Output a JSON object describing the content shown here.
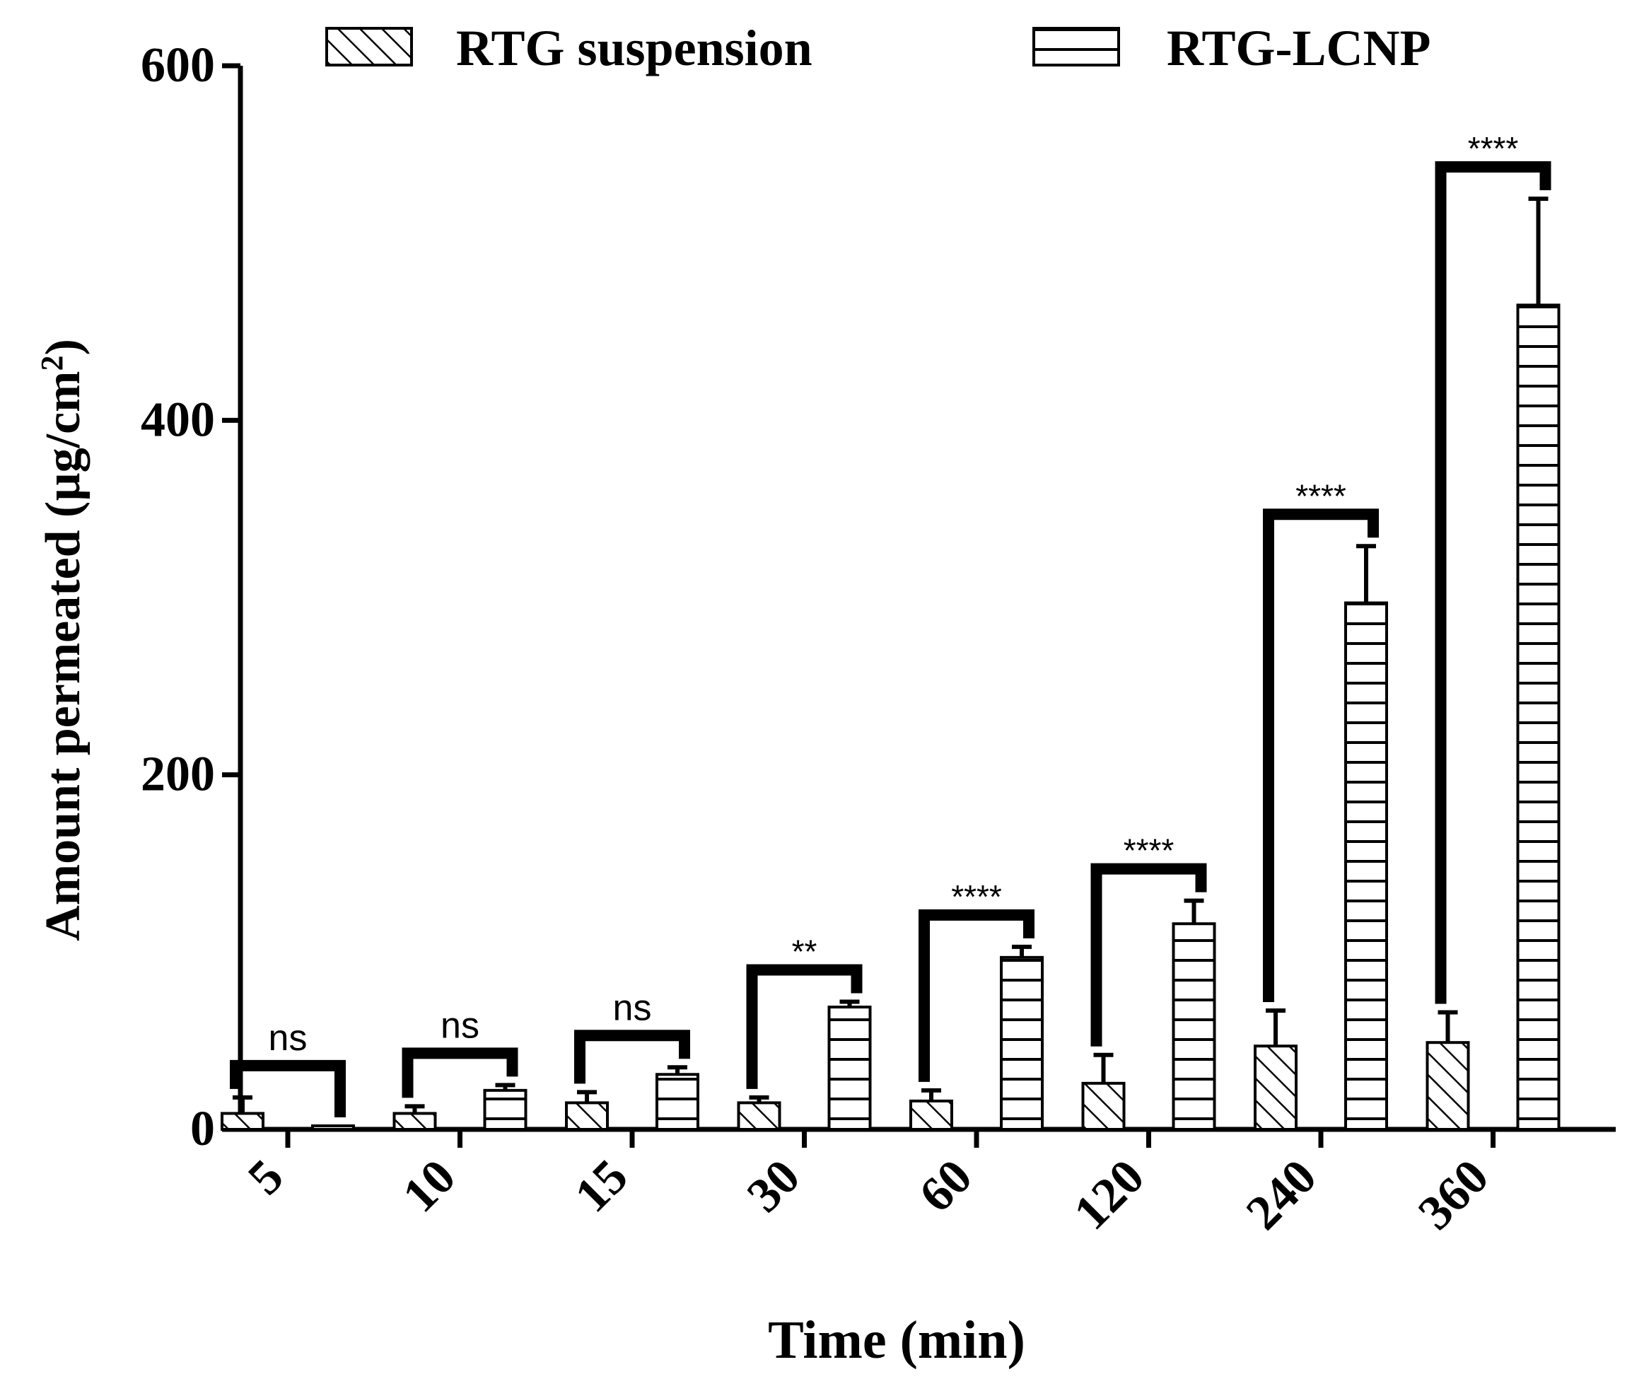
{
  "chart_data": {
    "type": "bar",
    "xlabel": "Time (min)",
    "ylabel": "Amount permeated (µg/cm",
    "ylabel_superscript": "2",
    "ylabel_close": ")",
    "ylim": [
      0,
      600
    ],
    "yticks": [
      0,
      200,
      400,
      600
    ],
    "categories": [
      "5",
      "10",
      "15",
      "30",
      "60",
      "120",
      "240",
      "360"
    ],
    "legend_position": "top",
    "series": [
      {
        "name": "RTG suspension",
        "pattern": "diagonal-hatch",
        "values": [
          9,
          9,
          15,
          15,
          16,
          26,
          47,
          49
        ],
        "errors": [
          9,
          4,
          6,
          3,
          6,
          16,
          20,
          17
        ]
      },
      {
        "name": "RTG-LCNP",
        "pattern": "horizontal-stripes",
        "values": [
          2,
          22,
          31,
          69,
          97,
          116,
          297,
          465
        ],
        "errors": [
          0,
          3,
          4,
          3,
          6,
          13,
          32,
          60
        ]
      }
    ],
    "significance": [
      "ns",
      "ns",
      "ns",
      "**",
      "****",
      "****",
      "****",
      "****"
    ]
  }
}
